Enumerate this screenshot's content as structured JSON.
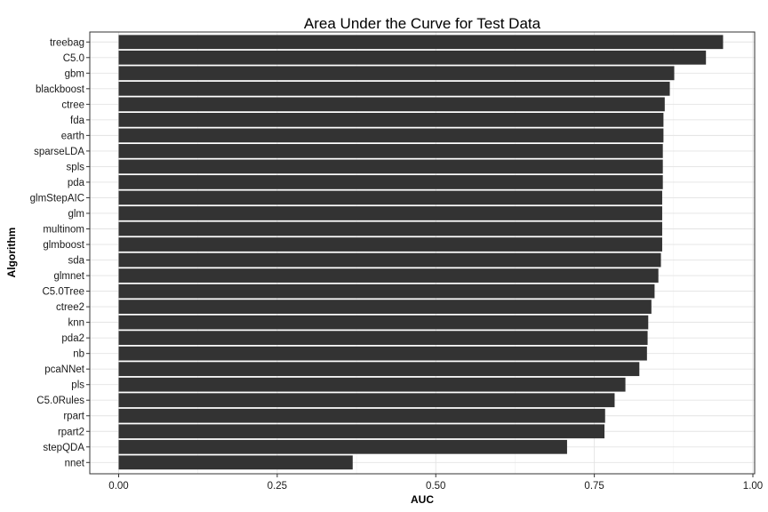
{
  "chart_data": {
    "type": "bar",
    "orientation": "horizontal",
    "title": "Area Under the Curve for Test Data",
    "xlabel": "AUC",
    "ylabel": "Algorithm",
    "xlim": [
      0,
      1
    ],
    "x_ticks": [
      "0.00",
      "0.25",
      "0.50",
      "0.75",
      "1.00"
    ],
    "x_tick_values": [
      0,
      0.25,
      0.5,
      0.75,
      1.0
    ],
    "grid": true,
    "bar_color": "#333333",
    "categories": [
      "treebag",
      "C5.0",
      "gbm",
      "blackboost",
      "ctree",
      "fda",
      "earth",
      "sparseLDA",
      "spls",
      "pda",
      "glmStepAIC",
      "glm",
      "multinom",
      "glmboost",
      "sda",
      "glmnet",
      "C5.0Tree",
      "ctree2",
      "knn",
      "pda2",
      "nb",
      "pcaNNet",
      "pls",
      "C5.0Rules",
      "rpart",
      "rpart2",
      "stepQDA",
      "nnet"
    ],
    "values": [
      0.953,
      0.926,
      0.876,
      0.869,
      0.861,
      0.859,
      0.859,
      0.858,
      0.858,
      0.858,
      0.857,
      0.857,
      0.857,
      0.857,
      0.855,
      0.851,
      0.845,
      0.84,
      0.835,
      0.834,
      0.833,
      0.821,
      0.799,
      0.782,
      0.767,
      0.766,
      0.707,
      0.369
    ]
  }
}
